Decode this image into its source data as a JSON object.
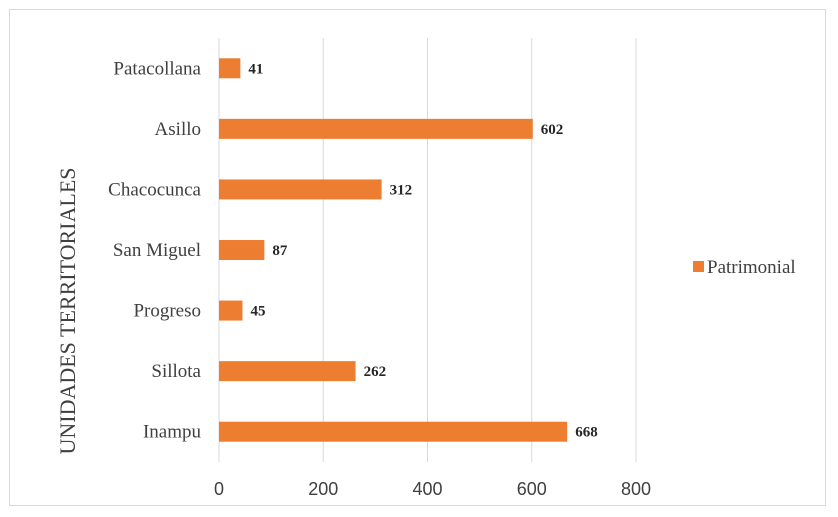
{
  "chart_data": {
    "type": "bar",
    "orientation": "horizontal",
    "categories": [
      "Inampu",
      "Sillota",
      "Progreso",
      "San Miguel",
      "Chacocunca",
      "Asillo",
      "Patacollana"
    ],
    "series": [
      {
        "name": "Patrimonial",
        "values": [
          668,
          262,
          45,
          87,
          312,
          602,
          41
        ],
        "color": "#ED7D31"
      }
    ],
    "title": "",
    "xlabel": "",
    "ylabel": "UNIDADES TERRITORIALES",
    "xlim": [
      0,
      800
    ],
    "xticks": [
      "0",
      "200",
      "400",
      "600",
      "800"
    ],
    "grid": "vertical",
    "legend_position": "right",
    "data_labels": true
  }
}
